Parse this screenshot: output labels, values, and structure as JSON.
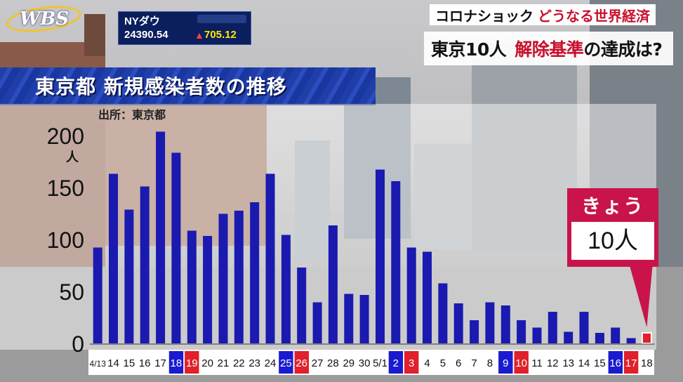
{
  "logo": {
    "text": "WBS"
  },
  "ticker": {
    "name": "NYダウ",
    "value": "24390.54",
    "arrow": "▲",
    "change": "705.12"
  },
  "headline": {
    "series": "コロナショック",
    "series_accent": "どうなる世界経済",
    "question_a": "東京10人",
    "question_b": "解除基準",
    "question_c": "の達成は?"
  },
  "colors": {
    "bar": "#1a1ab0",
    "today_bar": "#e0202a",
    "weekend_sat": "#1a1ad0",
    "weekend_sun": "#e0202a",
    "callout": "#c8144a"
  },
  "callout": {
    "label": "きょう",
    "value": "10人"
  },
  "chart_data": {
    "type": "bar",
    "title": "東京都 新規感染者数の推移",
    "source": "出所：東京都",
    "ylabel": "人",
    "ylim": [
      0,
      200
    ],
    "yticks": [
      "200",
      "150",
      "100",
      "50",
      "0"
    ],
    "categories": [
      "4/13",
      "14",
      "15",
      "16",
      "17",
      "18",
      "19",
      "20",
      "21",
      "22",
      "23",
      "24",
      "25",
      "26",
      "27",
      "28",
      "29",
      "30",
      "5/1",
      "2",
      "3",
      "4",
      "5",
      "6",
      "7",
      "8",
      "9",
      "10",
      "11",
      "12",
      "13",
      "14",
      "15",
      "16",
      "17",
      "18"
    ],
    "values": [
      91,
      161,
      127,
      149,
      201,
      181,
      107,
      102,
      123,
      126,
      134,
      161,
      103,
      72,
      39,
      112,
      47,
      46,
      165,
      154,
      91,
      87,
      57,
      38,
      22,
      39,
      36,
      22,
      15,
      30,
      11,
      30,
      10,
      15,
      5,
      10
    ],
    "highlight": {
      "saturday": [
        5,
        12,
        19,
        26,
        33
      ],
      "sunday": [
        6,
        13,
        20,
        27,
        34
      ],
      "today": 35
    }
  }
}
